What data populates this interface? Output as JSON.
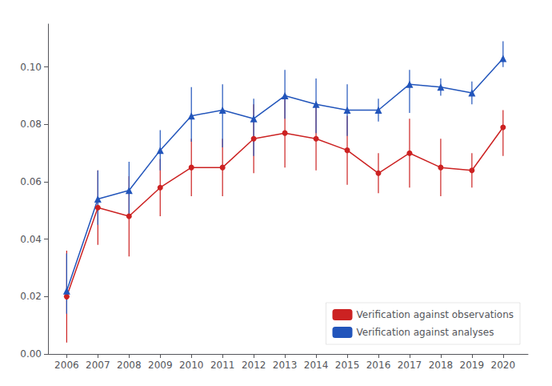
{
  "chart_data": {
    "type": "line",
    "x": [
      2006,
      2007,
      2008,
      2009,
      2010,
      2011,
      2012,
      2013,
      2014,
      2015,
      2016,
      2017,
      2018,
      2019,
      2020
    ],
    "series": [
      {
        "name": "Verification against observations",
        "color": "#cc2222",
        "marker": "circle",
        "values": [
          0.02,
          0.051,
          0.048,
          0.058,
          0.065,
          0.065,
          0.075,
          0.077,
          0.075,
          0.071,
          0.063,
          0.07,
          0.065,
          0.064,
          0.079
        ],
        "error_low": [
          0.016,
          0.013,
          0.014,
          0.01,
          0.01,
          0.01,
          0.012,
          0.012,
          0.011,
          0.012,
          0.007,
          0.012,
          0.01,
          0.006,
          0.01
        ],
        "error_high": [
          0.016,
          0.013,
          0.014,
          0.01,
          0.01,
          0.01,
          0.012,
          0.012,
          0.011,
          0.012,
          0.007,
          0.012,
          0.01,
          0.006,
          0.006
        ]
      },
      {
        "name": "Verification against analyses",
        "color": "#2255bb",
        "marker": "triangle",
        "values": [
          0.022,
          0.054,
          0.057,
          0.071,
          0.083,
          0.085,
          0.082,
          0.09,
          0.087,
          0.085,
          0.085,
          0.094,
          0.093,
          0.091,
          0.103
        ],
        "error_low": [
          0.008,
          0.009,
          0.009,
          0.007,
          0.009,
          0.013,
          0.013,
          0.008,
          0.01,
          0.009,
          0.004,
          0.01,
          0.003,
          0.004,
          0.003
        ],
        "error_high": [
          0.013,
          0.01,
          0.01,
          0.007,
          0.01,
          0.009,
          0.007,
          0.009,
          0.009,
          0.009,
          0.004,
          0.005,
          0.003,
          0.004,
          0.006
        ]
      }
    ],
    "xlim": [
      2005.4,
      2020.8
    ],
    "xticks": [
      2006,
      2007,
      2008,
      2009,
      2010,
      2011,
      2012,
      2013,
      2014,
      2015,
      2016,
      2017,
      2018,
      2019,
      2020
    ],
    "ylim": [
      0.0,
      0.115
    ],
    "yticks": [
      {
        "value": 0,
        "label": "0.00"
      },
      0.02,
      0.04,
      0.06,
      0.08,
      {
        "value": 0.1,
        "label": "0.10"
      }
    ],
    "grid": false,
    "legend": "lower right"
  }
}
